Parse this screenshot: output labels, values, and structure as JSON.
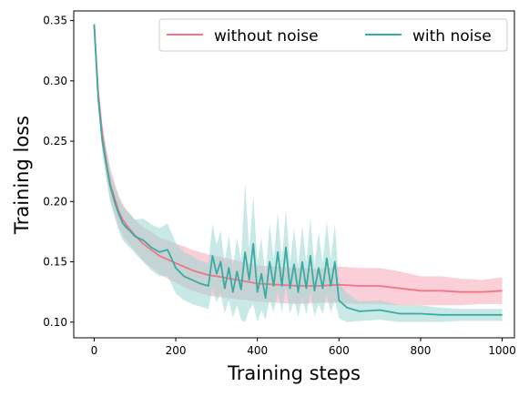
{
  "chart_data": {
    "type": "line",
    "xlabel": "Training steps",
    "ylabel": "Training loss",
    "xlim": [
      -50,
      1030
    ],
    "ylim": [
      0.087,
      0.358
    ],
    "xticks": [
      0,
      200,
      400,
      600,
      800,
      1000
    ],
    "yticks": [
      0.1,
      0.15,
      0.2,
      0.25,
      0.3,
      0.35
    ],
    "xtick_labels": [
      "0",
      "200",
      "400",
      "600",
      "800",
      "1000"
    ],
    "ytick_labels": [
      "0.10",
      "0.15",
      "0.20",
      "0.25",
      "0.30",
      "0.35"
    ],
    "legend_position": "top-right",
    "series": [
      {
        "name": "without noise",
        "color": "#f07585",
        "band_color": "#f7a8b6",
        "x": [
          0,
          10,
          20,
          30,
          40,
          50,
          60,
          70,
          80,
          90,
          100,
          120,
          140,
          160,
          180,
          200,
          220,
          240,
          260,
          280,
          300,
          350,
          400,
          450,
          500,
          550,
          600,
          650,
          700,
          750,
          800,
          850,
          900,
          950,
          1000
        ],
        "y": [
          0.347,
          0.29,
          0.255,
          0.232,
          0.214,
          0.203,
          0.192,
          0.185,
          0.18,
          0.176,
          0.172,
          0.165,
          0.16,
          0.155,
          0.152,
          0.149,
          0.146,
          0.143,
          0.141,
          0.139,
          0.138,
          0.135,
          0.132,
          0.131,
          0.13,
          0.13,
          0.131,
          0.13,
          0.13,
          0.128,
          0.126,
          0.126,
          0.125,
          0.125,
          0.126
        ],
        "lower": [
          0.347,
          0.284,
          0.245,
          0.22,
          0.201,
          0.19,
          0.179,
          0.172,
          0.167,
          0.163,
          0.159,
          0.151,
          0.145,
          0.14,
          0.136,
          0.133,
          0.129,
          0.126,
          0.124,
          0.122,
          0.121,
          0.119,
          0.117,
          0.116,
          0.115,
          0.116,
          0.116,
          0.115,
          0.115,
          0.114,
          0.114,
          0.114,
          0.114,
          0.115,
          0.115
        ],
        "upper": [
          0.347,
          0.296,
          0.265,
          0.244,
          0.227,
          0.216,
          0.205,
          0.198,
          0.193,
          0.189,
          0.185,
          0.179,
          0.175,
          0.17,
          0.168,
          0.165,
          0.163,
          0.16,
          0.158,
          0.156,
          0.155,
          0.151,
          0.147,
          0.146,
          0.145,
          0.144,
          0.146,
          0.145,
          0.145,
          0.142,
          0.138,
          0.138,
          0.136,
          0.135,
          0.137
        ]
      },
      {
        "name": "with noise",
        "color": "#3aaba4",
        "band_color": "#9bd7d2",
        "x": [
          0,
          10,
          20,
          30,
          40,
          50,
          60,
          70,
          80,
          90,
          100,
          120,
          140,
          160,
          180,
          200,
          220,
          240,
          260,
          280,
          290,
          300,
          310,
          320,
          330,
          340,
          350,
          360,
          370,
          380,
          390,
          400,
          410,
          420,
          430,
          440,
          450,
          460,
          470,
          480,
          490,
          500,
          510,
          520,
          530,
          540,
          550,
          560,
          570,
          580,
          590,
          600,
          620,
          650,
          700,
          750,
          800,
          850,
          900,
          950,
          1000
        ],
        "y": [
          0.347,
          0.285,
          0.25,
          0.23,
          0.212,
          0.2,
          0.19,
          0.182,
          0.178,
          0.175,
          0.171,
          0.168,
          0.162,
          0.158,
          0.16,
          0.145,
          0.138,
          0.135,
          0.132,
          0.13,
          0.155,
          0.14,
          0.15,
          0.128,
          0.145,
          0.125,
          0.142,
          0.127,
          0.158,
          0.135,
          0.165,
          0.125,
          0.14,
          0.12,
          0.15,
          0.13,
          0.158,
          0.13,
          0.162,
          0.128,
          0.148,
          0.125,
          0.15,
          0.128,
          0.155,
          0.126,
          0.145,
          0.128,
          0.153,
          0.13,
          0.15,
          0.118,
          0.112,
          0.109,
          0.11,
          0.107,
          0.107,
          0.106,
          0.106,
          0.106,
          0.106
        ],
        "lower": [
          0.347,
          0.278,
          0.24,
          0.218,
          0.199,
          0.187,
          0.176,
          0.168,
          0.164,
          0.161,
          0.157,
          0.15,
          0.143,
          0.138,
          0.138,
          0.124,
          0.118,
          0.115,
          0.113,
          0.111,
          0.128,
          0.116,
          0.124,
          0.107,
          0.118,
          0.104,
          0.114,
          0.102,
          0.1,
          0.11,
          0.115,
          0.1,
          0.11,
          0.102,
          0.118,
          0.108,
          0.125,
          0.108,
          0.13,
          0.107,
          0.118,
          0.104,
          0.12,
          0.106,
          0.124,
          0.105,
          0.115,
          0.107,
          0.122,
          0.108,
          0.118,
          0.103,
          0.1,
          0.101,
          0.102,
          0.1,
          0.1,
          0.1,
          0.101,
          0.101,
          0.101
        ],
        "upper": [
          0.347,
          0.292,
          0.26,
          0.242,
          0.225,
          0.213,
          0.204,
          0.196,
          0.192,
          0.189,
          0.185,
          0.186,
          0.181,
          0.178,
          0.182,
          0.166,
          0.158,
          0.155,
          0.151,
          0.149,
          0.182,
          0.164,
          0.176,
          0.149,
          0.172,
          0.146,
          0.17,
          0.152,
          0.216,
          0.16,
          0.205,
          0.15,
          0.17,
          0.138,
          0.182,
          0.152,
          0.191,
          0.152,
          0.194,
          0.149,
          0.178,
          0.146,
          0.18,
          0.15,
          0.186,
          0.147,
          0.175,
          0.149,
          0.184,
          0.152,
          0.182,
          0.133,
          0.124,
          0.117,
          0.118,
          0.114,
          0.114,
          0.112,
          0.111,
          0.111,
          0.111
        ]
      }
    ]
  }
}
